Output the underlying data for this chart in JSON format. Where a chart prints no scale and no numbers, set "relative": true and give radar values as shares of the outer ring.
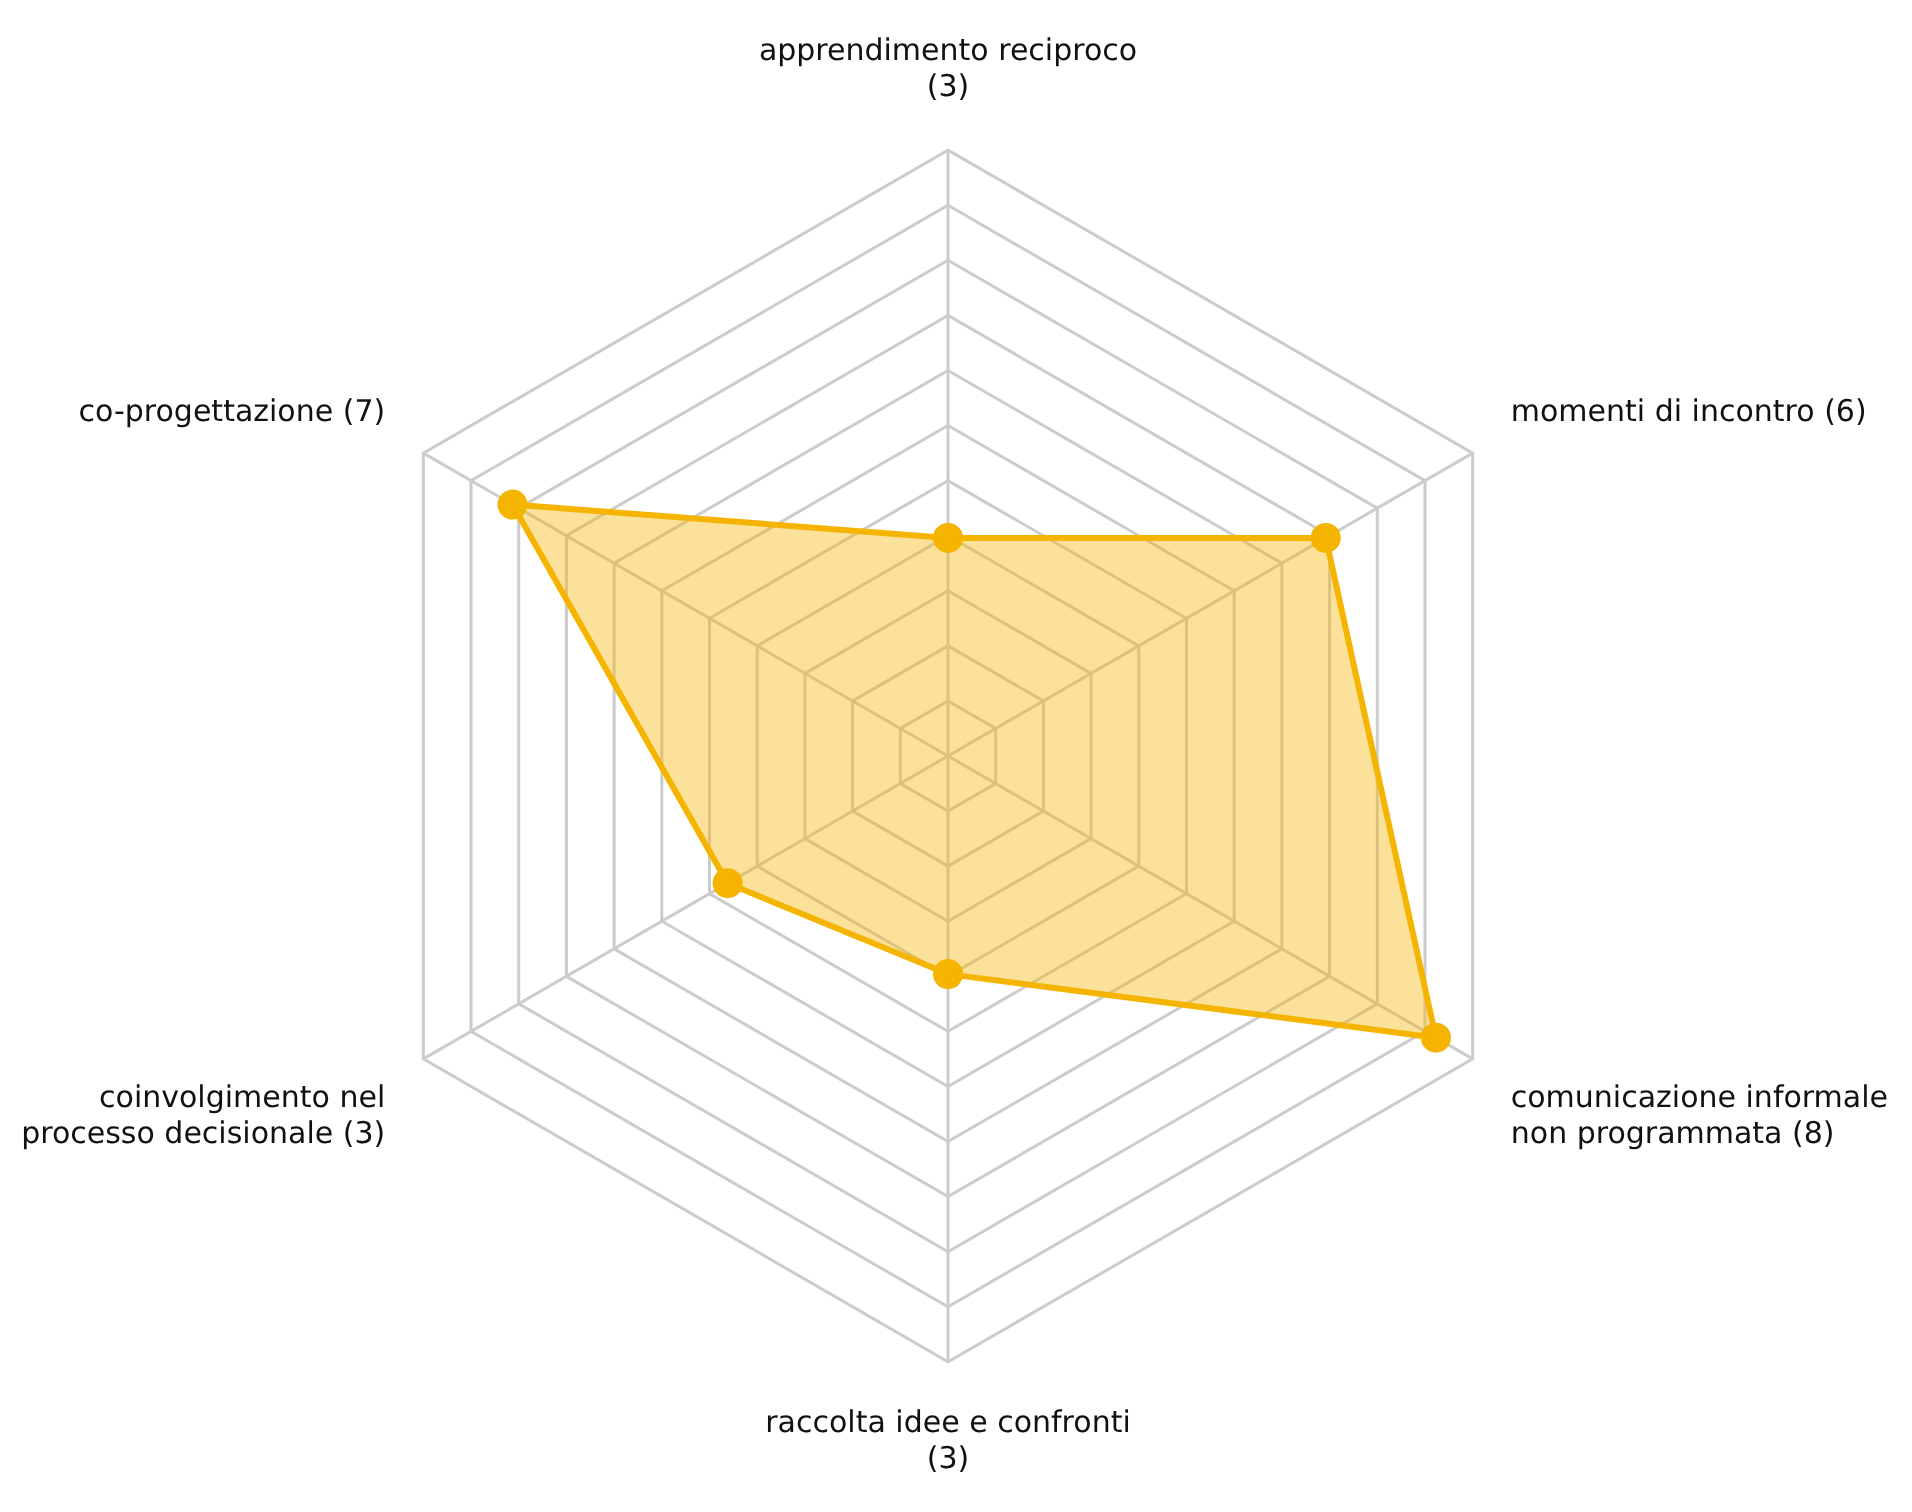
{
  "chart_data": {
    "type": "radar",
    "relative": true,
    "categories": [
      "apprendimento reciproco\n(3)",
      "momenti di incontro (6)",
      "comunicazione informale\nnon programmata (8)",
      "raccolta idee e confronti\n(3)",
      "coinvolgimento nel\nprocesso decisionale (3)",
      "co-progettazione (7)"
    ],
    "series": [
      {
        "color": "#f5b400",
        "values": [
          0.36,
          0.72,
          0.93,
          0.36,
          0.42,
          0.83
        ]
      }
    ],
    "marker": "circle",
    "grid": true,
    "legend": false
  }
}
